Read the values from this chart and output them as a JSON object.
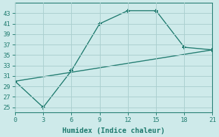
{
  "xlabel": "Humidex (Indice chaleur)",
  "line1_x": [
    0,
    3,
    6,
    9,
    12,
    15,
    18,
    21
  ],
  "line1_y": [
    30,
    25,
    32,
    41,
    43.5,
    43.5,
    36.5,
    36
  ],
  "line2_x": [
    0,
    21
  ],
  "line2_y": [
    30,
    36
  ],
  "line_color": "#1e7a6e",
  "bg_color": "#ceeaea",
  "grid_color": "#aacfcf",
  "xlim": [
    0,
    21
  ],
  "ylim": [
    24,
    45
  ],
  "xticks": [
    0,
    3,
    6,
    9,
    12,
    15,
    18,
    21
  ],
  "yticks": [
    25,
    27,
    29,
    31,
    33,
    35,
    37,
    39,
    41,
    43
  ],
  "marker": "+",
  "markersize": 5,
  "markeredgewidth": 1.5,
  "linewidth": 1.0,
  "tick_fontsize": 6.5,
  "label_fontsize": 7.5
}
